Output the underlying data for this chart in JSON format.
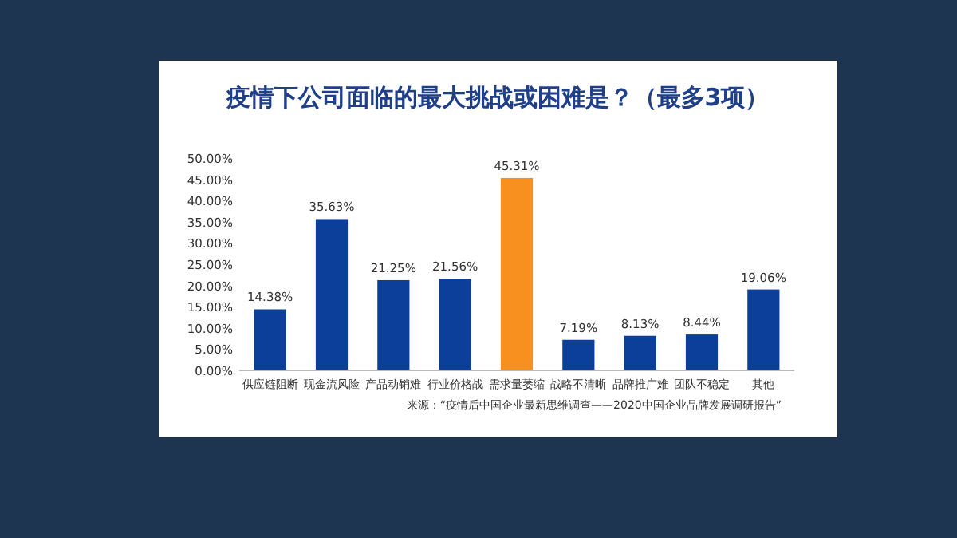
{
  "chart_data": {
    "type": "bar",
    "title": "疫情下公司面临的最大挑战或困难是？（最多3项）",
    "categories": [
      "供应链阻断",
      "现金流风险",
      "产品动销难",
      "行业价格战",
      "需求量萎缩",
      "战略不清晰",
      "品牌推广难",
      "团队不稳定",
      "其他"
    ],
    "values": [
      14.38,
      35.63,
      21.25,
      21.56,
      45.31,
      7.19,
      8.13,
      8.44,
      19.06
    ],
    "colors": [
      "#0b3f99",
      "#0b3f99",
      "#0b3f99",
      "#0b3f99",
      "#f7901e",
      "#0b3f99",
      "#0b3f99",
      "#0b3f99",
      "#0b3f99"
    ],
    "value_labels": [
      "14.38%",
      "35.63%",
      "21.25%",
      "21.56%",
      "45.31%",
      "7.19%",
      "8.13%",
      "8.44%",
      "19.06%"
    ],
    "ylim": [
      0,
      50
    ],
    "yticks": [
      {
        "value": 0,
        "label": "0.00%"
      },
      {
        "value": 5,
        "label": "5.00%"
      },
      {
        "value": 10,
        "label": "10.00%"
      },
      {
        "value": 15,
        "label": "15.00%"
      },
      {
        "value": 20,
        "label": "20.00%"
      },
      {
        "value": 25,
        "label": "25.00%"
      },
      {
        "value": 30,
        "label": "30.00%"
      },
      {
        "value": 35,
        "label": "35.00%"
      },
      {
        "value": 40,
        "label": "40.00%"
      },
      {
        "value": 45,
        "label": "45.00%"
      },
      {
        "value": 50,
        "label": "50.00%"
      }
    ],
    "annotations": [
      "来源：“疫情后中国企业最新思维调查——2020中国企业品牌发展调研报告”"
    ]
  }
}
